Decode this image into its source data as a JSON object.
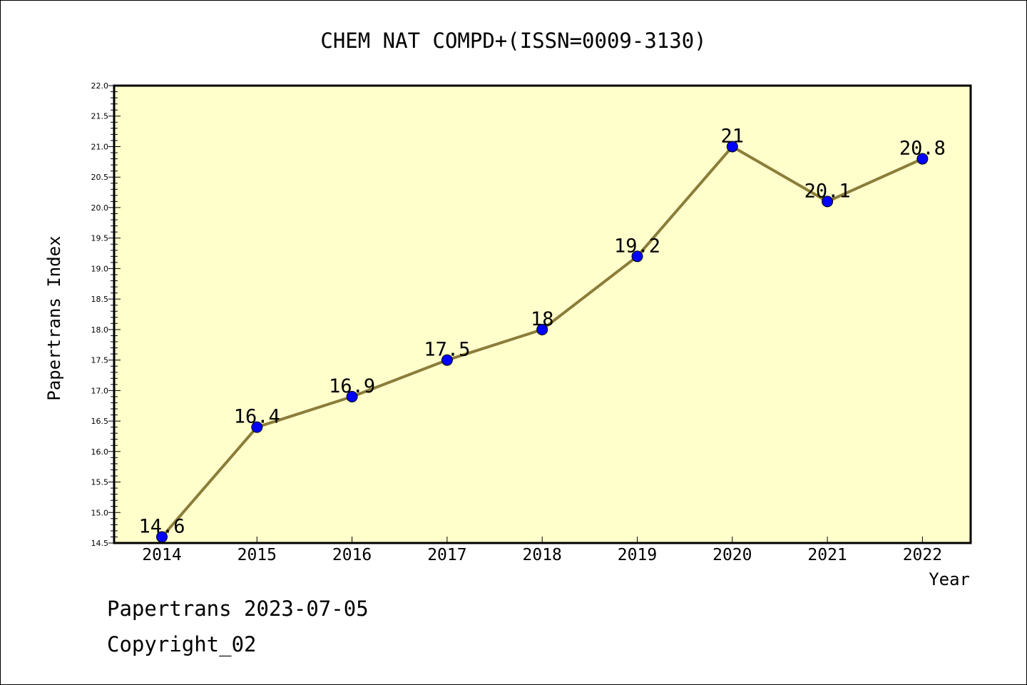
{
  "chart_data": {
    "type": "line",
    "title": "CHEM NAT COMPD+(ISSN=0009-3130)",
    "xlabel": "Year",
    "ylabel": "Papertrans Index",
    "x": [
      "2014",
      "2015",
      "2016",
      "2017",
      "2018",
      "2019",
      "2020",
      "2021",
      "2022"
    ],
    "series": [
      {
        "values": [
          14.6,
          16.4,
          16.9,
          17.5,
          18,
          19.2,
          21,
          20.1,
          20.8
        ]
      }
    ],
    "data_labels": [
      "14.6",
      "16.4",
      "16.9",
      "17.5",
      "18",
      "19.2",
      "21",
      "20.1",
      "20.8"
    ],
    "ylim": [
      14.5,
      22.0
    ],
    "y_ticks": [
      "14.5",
      "15.0",
      "15.5",
      "16.0",
      "16.5",
      "17.0",
      "17.5",
      "18.0",
      "18.5",
      "19.0",
      "19.5",
      "20.0",
      "20.5",
      "21.0",
      "21.5",
      "22.0"
    ],
    "grid": false,
    "legend": "none",
    "colors": {
      "plot_background": "#ffffcc",
      "line": "#8b7d3a",
      "marker": "#0000ff"
    }
  },
  "footer": {
    "line1": "Papertrans 2023-07-05",
    "line2": "Copyright_02"
  }
}
